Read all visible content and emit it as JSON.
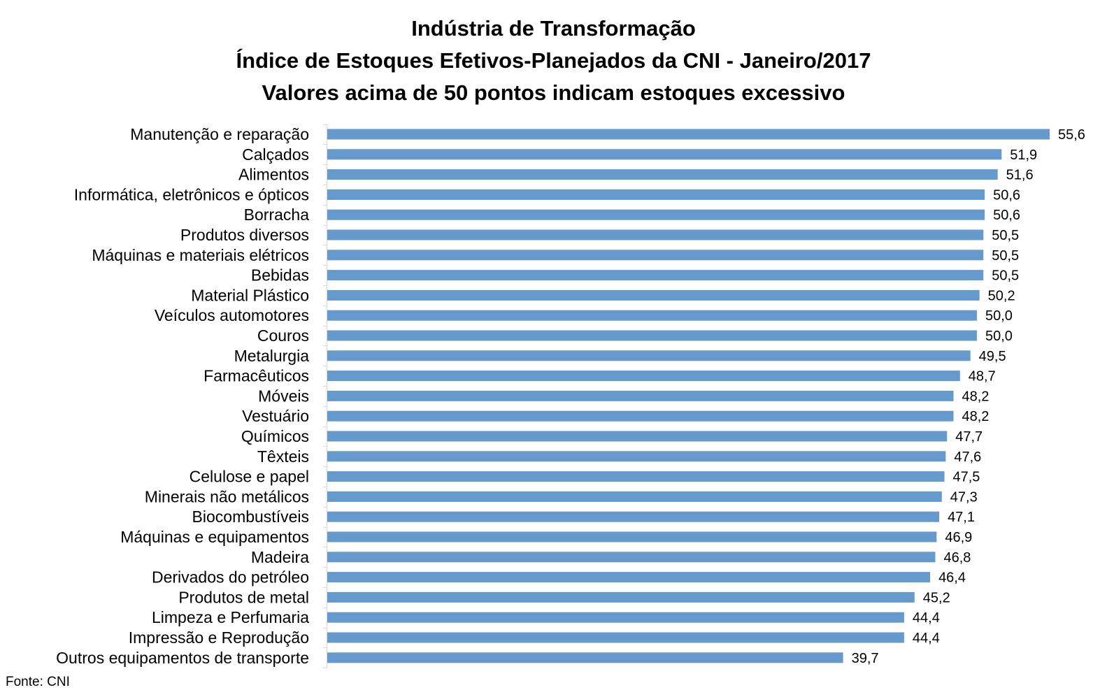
{
  "chart_data": {
    "type": "bar",
    "orientation": "horizontal",
    "title": "Indústria de Transformação",
    "subtitle": "Índice de Estoques Efetivos-Planejados da CNI - Janeiro/2017",
    "subtitle2": "Valores acima de 50 pontos indicam estoques excessivo",
    "source": "Fonte: CNI",
    "bar_color": "#6699cc",
    "categories": [
      "Manutenção e reparação",
      "Calçados",
      "Alimentos",
      "Informática, eletrônicos e ópticos",
      "Borracha",
      "Produtos diversos",
      "Máquinas e materiais elétricos",
      "Bebidas",
      "Material Plástico",
      "Veículos automotores",
      "Couros",
      "Metalurgia",
      "Farmacêuticos",
      "Móveis",
      "Vestuário",
      "Químicos",
      "Têxteis",
      "Celulose e papel",
      "Minerais não metálicos",
      "Biocombustíveis",
      "Máquinas e equipamentos",
      "Madeira",
      "Derivados do petróleo",
      "Produtos de metal",
      "Limpeza e Perfumaria",
      "Impressão e Reprodução ",
      "Outros equipamentos de transporte"
    ],
    "values": [
      55.6,
      51.9,
      51.6,
      50.6,
      50.6,
      50.5,
      50.5,
      50.5,
      50.2,
      50.0,
      50.0,
      49.5,
      48.7,
      48.2,
      48.2,
      47.7,
      47.6,
      47.5,
      47.3,
      47.1,
      46.9,
      46.8,
      46.4,
      45.2,
      44.4,
      44.4,
      39.7
    ],
    "data_labels": [
      "55,6",
      "51,9",
      "51,6",
      "50,6",
      "50,6",
      "50,5",
      "50,5",
      "50,5",
      "50,2",
      "50,0",
      "50,0",
      "49,5",
      "48,7",
      "48,2",
      "48,2",
      "47,7",
      "47,6",
      "47,5",
      "47,3",
      "47,1",
      "46,9",
      "46,8",
      "46,4",
      "45,2",
      "44,4",
      "44,4",
      "39,7"
    ],
    "xlim": [
      0,
      55.6
    ],
    "grid": false,
    "legend": false
  }
}
